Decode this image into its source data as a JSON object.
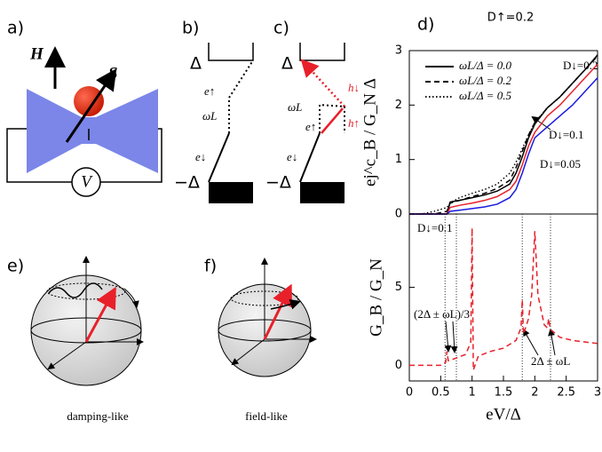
{
  "panels": {
    "a": "a)",
    "b": "b)",
    "c": "c)",
    "d": "d)",
    "e": "e)",
    "f": "f)",
    "a_H": "H",
    "a_S": "S",
    "a_V": "V",
    "b_gap_top": "Δ",
    "b_gap_bottom": "−Δ",
    "b_e_down": "e↓",
    "b_omega": "ωL",
    "b_e_up": "e↑",
    "c_gap_top": "Δ",
    "c_gap_bottom": "−Δ",
    "c_e_down": "e↓",
    "c_omega": "ωL",
    "c_e_up": "e↑",
    "c_h_down": "h↓",
    "c_h_up": "h↑",
    "e_caption": "damping-like",
    "f_caption": "field-like"
  },
  "chart_data": [
    {
      "type": "line",
      "title": "D↑=0.2",
      "ylabel": "ej^c_B / G_N Δ",
      "x": [
        0,
        0.2,
        0.4,
        0.6,
        0.65,
        0.8,
        1.0,
        1.2,
        1.4,
        1.6,
        1.7,
        1.8,
        1.9,
        2.0,
        2.2,
        2.4,
        2.6,
        2.8,
        3.0
      ],
      "series": [
        {
          "name": "ωL/Δ = 0.0",
          "color": "#000000",
          "dash": "solid",
          "values": [
            0,
            0,
            0,
            0,
            0.22,
            0.25,
            0.3,
            0.35,
            0.42,
            0.55,
            0.75,
            1.05,
            1.4,
            1.65,
            1.95,
            2.15,
            2.4,
            2.65,
            2.92
          ]
        },
        {
          "name": "ωL/Δ = 0.2",
          "color": "#000000",
          "dash": "dashed",
          "values": [
            0,
            0,
            0,
            0.05,
            0.2,
            0.25,
            0.32,
            0.38,
            0.47,
            0.62,
            0.85,
            1.15,
            1.45,
            1.68,
            1.95,
            2.15,
            2.4,
            2.65,
            2.9
          ]
        },
        {
          "name": "ωL/Δ = 0.5",
          "color": "#000000",
          "dash": "dotted",
          "values": [
            0,
            0,
            0.05,
            0.12,
            0.2,
            0.3,
            0.38,
            0.45,
            0.55,
            0.75,
            0.95,
            1.2,
            1.45,
            1.68,
            1.95,
            2.15,
            2.4,
            2.65,
            2.9
          ]
        },
        {
          "color": "#e8202a",
          "dash": "solid",
          "values": [
            0,
            0,
            0,
            0,
            0.12,
            0.16,
            0.2,
            0.25,
            0.32,
            0.45,
            0.6,
            0.9,
            1.25,
            1.5,
            1.8,
            2.0,
            2.25,
            2.5,
            2.75
          ]
        },
        {
          "color": "#1a1ae0",
          "dash": "solid",
          "values": [
            0,
            0,
            0,
            0,
            0.05,
            0.07,
            0.1,
            0.13,
            0.18,
            0.3,
            0.45,
            0.75,
            1.1,
            1.4,
            1.6,
            1.8,
            2.0,
            2.25,
            2.5
          ]
        }
      ],
      "annotations": [
        "D↓=0.2",
        "D↓=0.1",
        "D↓=0.05"
      ],
      "xlim": [
        0,
        3
      ],
      "ylim": [
        0,
        3
      ],
      "yticks": [
        0,
        1,
        2,
        3
      ],
      "legend": "upper left"
    },
    {
      "type": "line",
      "ylabel": "G_B / G_N",
      "xlabel": "eV/Δ",
      "x": [
        0,
        0.5,
        0.58,
        0.6,
        0.62,
        0.7,
        0.9,
        0.98,
        1.0,
        1.02,
        1.1,
        1.3,
        1.5,
        1.7,
        1.78,
        1.8,
        1.82,
        1.9,
        1.95,
        2.0,
        2.05,
        2.15,
        2.2,
        2.22,
        2.25,
        2.4,
        2.6,
        2.8,
        3.0
      ],
      "series": [
        {
          "color": "#e8202a",
          "dash": "dashed",
          "values": [
            0,
            0,
            0.2,
            0.9,
            0.3,
            0.4,
            0.7,
            1.5,
            8.8,
            -0.3,
            0.6,
            0.9,
            1.1,
            1.6,
            2.4,
            4.2,
            2.0,
            3.0,
            4.5,
            8.6,
            4.5,
            2.6,
            2.4,
            3.0,
            2.3,
            1.8,
            1.6,
            1.5,
            1.4
          ]
        }
      ],
      "vlines": [
        0.57,
        0.75,
        1.8,
        2.25
      ],
      "annotations": [
        "D↓=0.1",
        "(2Δ ± ωL)/3",
        "2Δ ± ωL"
      ],
      "xlim": [
        0,
        3
      ],
      "ylim": [
        -1,
        9.7
      ],
      "yticks": [
        0,
        5
      ],
      "xticks": [
        0,
        0.5,
        1,
        1.5,
        2,
        2.5,
        3
      ]
    }
  ]
}
